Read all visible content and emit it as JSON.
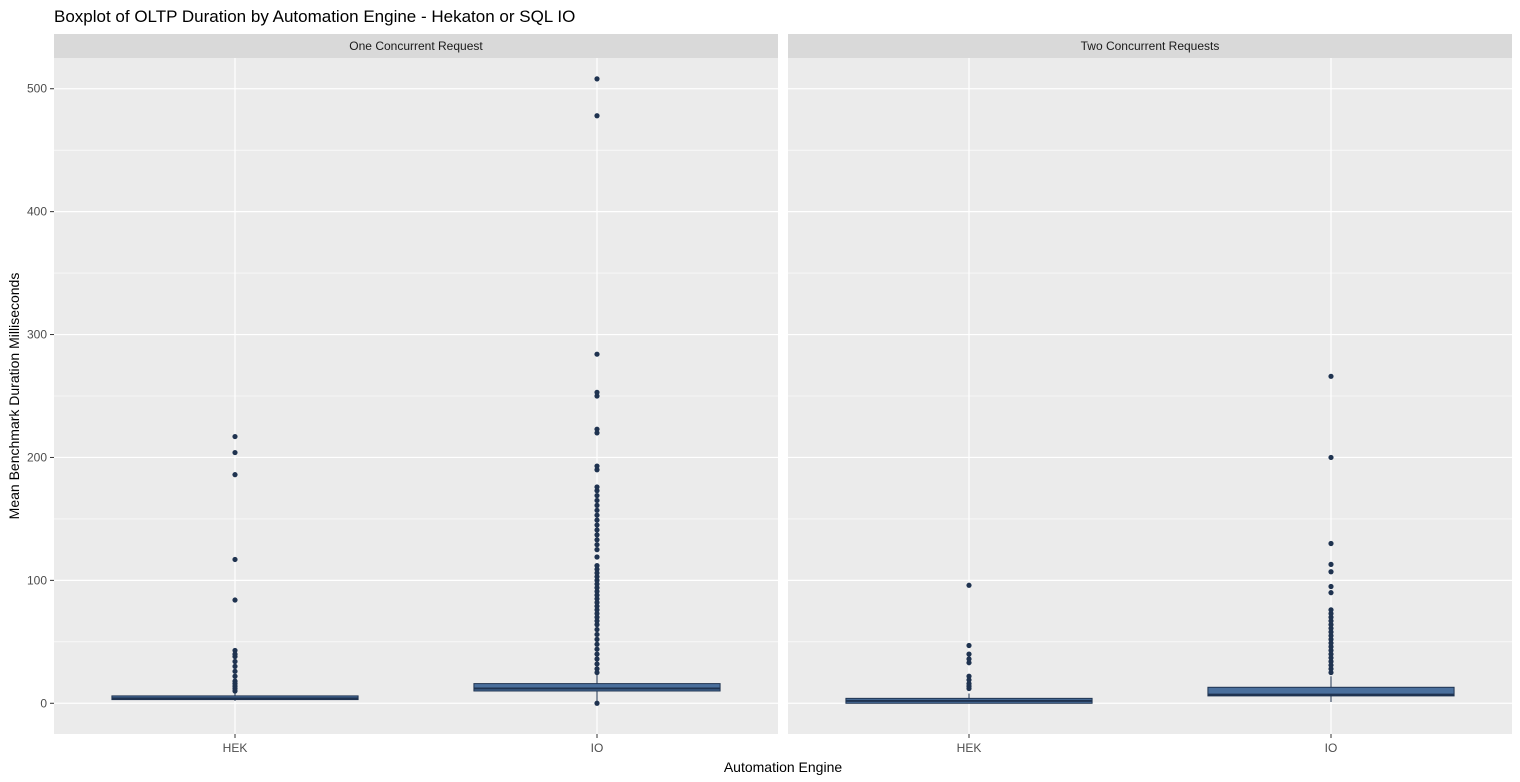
{
  "chart_data": {
    "type": "boxplot",
    "title": "Boxplot of OLTP Duration by Automation Engine - Hekaton or SQL IO",
    "xlabel": "Automation Engine",
    "ylabel": "Mean Benchmark Duration Milliseconds",
    "categories": [
      "HEK",
      "IO"
    ],
    "ylim": [
      -25,
      525
    ],
    "yticks": [
      0,
      100,
      200,
      300,
      400,
      500
    ],
    "grid": true,
    "colors": {
      "box_fill": "#4a6f9c",
      "outline": "#1f3350",
      "panel_bg": "#ebebeb",
      "strip_bg": "#d9d9d9",
      "grid": "#ffffff"
    },
    "panels": [
      {
        "label": "One Concurrent Request",
        "boxes": [
          {
            "category": "HEK",
            "min": 2,
            "q1": 3,
            "median": 4,
            "q3": 6,
            "max": 8,
            "outliers": [
              10,
              12,
              14,
              16,
              18,
              22,
              26,
              30,
              34,
              38,
              40,
              43,
              84,
              117,
              186,
              204,
              217
            ]
          },
          {
            "category": "IO",
            "min": 0,
            "q1": 10,
            "median": 12,
            "q3": 16,
            "max": 24,
            "outliers": [
              0,
              25,
              28,
              32,
              36,
              40,
              44,
              48,
              52,
              56,
              60,
              64,
              67,
              70,
              73,
              76,
              79,
              82,
              85,
              88,
              91,
              94,
              97,
              100,
              103,
              106,
              109,
              112,
              119,
              125,
              129,
              133,
              137,
              141,
              145,
              149,
              153,
              157,
              161,
              165,
              169,
              173,
              176,
              190,
              193,
              220,
              223,
              250,
              253,
              284,
              478,
              508
            ]
          }
        ]
      },
      {
        "label": "Two Concurrent Requests",
        "boxes": [
          {
            "category": "HEK",
            "min": 0,
            "q1": 0,
            "median": 2,
            "q3": 4,
            "max": 8,
            "outliers": [
              12,
              14,
              16,
              19,
              22,
              33,
              36,
              40,
              47,
              96
            ]
          },
          {
            "category": "IO",
            "min": 1,
            "q1": 6,
            "median": 7,
            "q3": 13,
            "max": 22,
            "outliers": [
              25,
              28,
              31,
              34,
              37,
              40,
              43,
              46,
              49,
              52,
              55,
              58,
              61,
              64,
              67,
              70,
              73,
              76,
              90,
              95,
              107,
              113,
              130,
              200,
              266
            ]
          }
        ]
      }
    ]
  }
}
